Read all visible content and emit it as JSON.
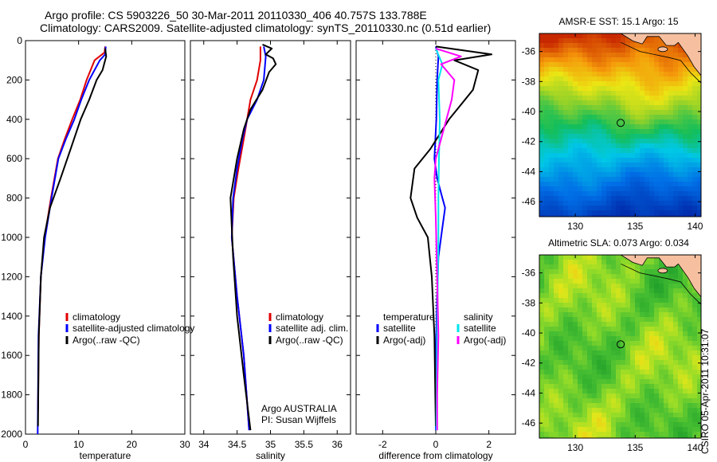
{
  "header": {
    "line1": "Argo profile: CS 5903226_50 30-Mar-2011 20110330_406 40.757S 133.788E",
    "line2": "Climatology: CARS2009. Satellite-adjusted climatology: synTS_20110330.nc (0.51d earlier)"
  },
  "side_stamp": "CSIRO 05-Apr-2011 10:31:07",
  "colors": {
    "climatology": "#e00000",
    "satellite": "#0000ff",
    "argo": "#000000",
    "sat_salinity": "#00e5ee",
    "argo_salinity": "#ff00ff",
    "land": "#f6c0a0"
  },
  "chart_data": [
    {
      "type": "line",
      "xlabel": "temperature",
      "xlim": [
        0,
        30
      ],
      "xticks": [
        0,
        10,
        20,
        30
      ],
      "ylim": [
        2000,
        0
      ],
      "yticks": [
        0,
        200,
        400,
        600,
        800,
        1000,
        1200,
        1400,
        1600,
        1800,
        2000
      ],
      "legend": {
        "position": "lower-right",
        "entries": [
          "climatology",
          "satellite-adjusted climatology",
          "Argo(..raw -QC)"
        ]
      },
      "series": [
        {
          "name": "climatology",
          "color": "#e00000",
          "x": [
            15,
            14.9,
            13,
            11.5,
            10.3,
            8.8,
            7.4,
            6.1,
            4.8,
            3.6,
            2.9,
            2.5,
            2.35
          ],
          "y": [
            30,
            60,
            100,
            200,
            300,
            400,
            500,
            600,
            800,
            1000,
            1200,
            1500,
            1880
          ]
        },
        {
          "name": "satellite-adjusted climatology",
          "color": "#0000ff",
          "x": [
            15.1,
            15,
            14,
            12,
            10.5,
            9.2,
            7.6,
            6.2,
            4.9,
            3.7,
            2.9,
            2.45,
            2.35,
            2.3
          ],
          "y": [
            30,
            70,
            100,
            200,
            300,
            400,
            500,
            600,
            800,
            1000,
            1200,
            1500,
            1800,
            2000
          ]
        },
        {
          "name": "Argo(..raw -QC)",
          "color": "#000000",
          "x": [
            15,
            15.2,
            14.5,
            13.4,
            12,
            10.4,
            8.5,
            6.6,
            4.6,
            3.5,
            2.9,
            2.5,
            2.35
          ],
          "y": [
            40,
            80,
            150,
            200,
            300,
            400,
            550,
            700,
            850,
            1000,
            1200,
            1500,
            1960
          ]
        }
      ]
    },
    {
      "type": "line",
      "xlabel": "salinity",
      "xlim": [
        33.8,
        36.2
      ],
      "xticks": [
        34,
        34.5,
        35,
        35.5,
        36
      ],
      "ylim": [
        2000,
        0
      ],
      "legend": {
        "position": "lower-right",
        "entries": [
          "climatology",
          "satellite adj. clim.",
          "Argo(..raw -QC)"
        ]
      },
      "annotations": [
        "Argo AUSTRALIA",
        "PI: Susan Wijffels"
      ],
      "series": [
        {
          "name": "climatology",
          "color": "#e00000",
          "x": [
            34.85,
            34.85,
            34.8,
            34.7,
            34.65,
            34.6,
            34.52,
            34.45,
            34.42,
            34.5,
            34.6,
            34.68
          ],
          "y": [
            30,
            100,
            200,
            300,
            400,
            500,
            650,
            800,
            1000,
            1300,
            1600,
            1980
          ]
        },
        {
          "name": "satellite adj. clim.",
          "color": "#0000ff",
          "x": [
            34.9,
            34.93,
            34.9,
            34.8,
            34.65,
            34.58,
            34.5,
            34.44,
            34.42,
            34.5,
            34.6,
            34.68
          ],
          "y": [
            30,
            80,
            200,
            300,
            400,
            500,
            650,
            800,
            1000,
            1300,
            1600,
            1980
          ]
        },
        {
          "name": "Argo(..raw -QC)",
          "color": "#000000",
          "x": [
            34.88,
            35.02,
            34.93,
            35.04,
            35.08,
            34.98,
            34.88,
            34.7,
            34.6,
            34.5,
            34.4,
            34.44,
            34.5,
            34.6,
            34.7
          ],
          "y": [
            20,
            40,
            70,
            90,
            120,
            160,
            250,
            350,
            450,
            600,
            800,
            1100,
            1400,
            1700,
            1980
          ]
        }
      ]
    },
    {
      "type": "line",
      "xlabel": "difference from climatology",
      "xlim": [
        -3,
        3
      ],
      "xticks": [
        -2,
        0,
        2
      ],
      "ylim": [
        2000,
        0
      ],
      "legend": {
        "position": "lower-right",
        "headers": [
          "temperature",
          "salinity"
        ],
        "entries": [
          "satellite",
          "Argo(-adj)",
          "satellite",
          "Argo(-adj)"
        ]
      },
      "series": [
        {
          "name": "satellite",
          "color": "#0000ff",
          "x": [
            0,
            0.1,
            0.05,
            0.02,
            -0.05,
            0.05,
            0.25,
            0.35,
            0.25,
            0.1,
            0.05,
            0,
            0
          ],
          "y": [
            30,
            80,
            200,
            400,
            600,
            700,
            800,
            850,
            950,
            1100,
            1300,
            1600,
            1980
          ]
        },
        {
          "name": "Argo(-adj)",
          "color": "#000000",
          "x": [
            0,
            2.1,
            0.7,
            1.6,
            1.4,
            0.5,
            -0.2,
            -0.8,
            -0.95,
            -0.7,
            -0.3,
            -0.15,
            -0.05,
            0
          ],
          "y": [
            30,
            70,
            100,
            150,
            250,
            400,
            550,
            650,
            800,
            900,
            1000,
            1200,
            1500,
            1960
          ]
        },
        {
          "name": "satellite",
          "color": "#00e5ee",
          "x": [
            0,
            0.25,
            0.1,
            0.15,
            0.12,
            0.1,
            0.1,
            0.05,
            0.02
          ],
          "y": [
            40,
            120,
            200,
            400,
            600,
            800,
            1000,
            1500,
            1980
          ]
        },
        {
          "name": "Argo(-adj)",
          "color": "#ff00ff",
          "x": [
            0,
            0.95,
            0.2,
            0.7,
            0.6,
            0.3,
            0,
            -0.05,
            0,
            0.05,
            0.1,
            0.05,
            0.05
          ],
          "y": [
            40,
            80,
            120,
            200,
            300,
            450,
            600,
            700,
            900,
            1200,
            1500,
            1800,
            1980
          ]
        }
      ]
    },
    {
      "type": "heatmap",
      "title": "AMSR-E SST: 15.1 Argo: 15",
      "xlim": [
        127,
        140.5
      ],
      "ylim": [
        -47,
        -34.8
      ],
      "xticks": [
        130,
        135,
        140
      ],
      "yticks": [
        -36,
        -38,
        -40,
        -42,
        -44,
        -46
      ],
      "marker": {
        "lon": 133.788,
        "lat": -40.757
      }
    },
    {
      "type": "heatmap",
      "title": "Altimetric SLA: 0.073 Argo: 0.034",
      "xlim": [
        127,
        140.5
      ],
      "ylim": [
        -47,
        -34.8
      ],
      "xticks": [
        130,
        135,
        140
      ],
      "yticks": [
        -36,
        -38,
        -40,
        -42,
        -44,
        -46
      ],
      "marker": {
        "lon": 133.788,
        "lat": -40.757
      }
    }
  ]
}
